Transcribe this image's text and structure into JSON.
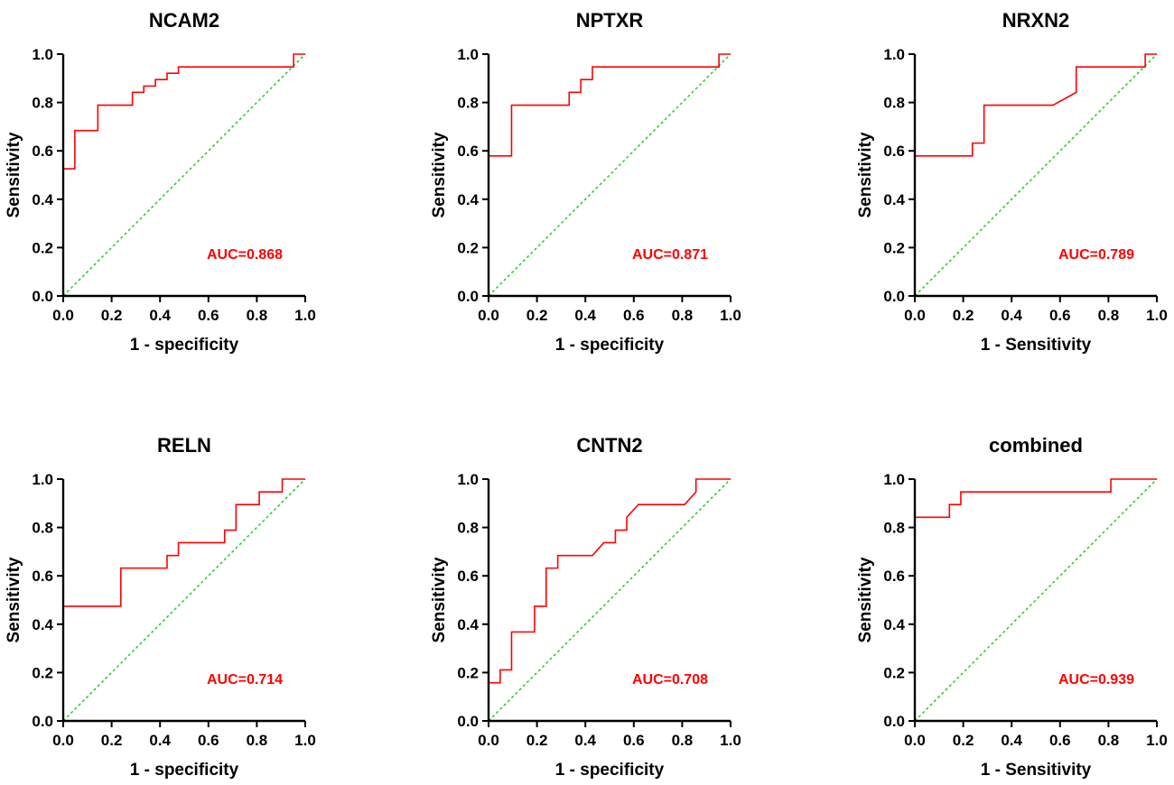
{
  "colors": {
    "roc": "#ff0000",
    "reference": "#22cc22",
    "auc_text": "#ff0000",
    "axis": "#000000"
  },
  "chart_data": [
    {
      "type": "line",
      "title": "NCAM2",
      "xlabel": "1 - specificity",
      "ylabel": "Sensitivity",
      "xlim": [
        0,
        1
      ],
      "ylim": [
        0,
        1
      ],
      "xticks": [
        "0.0",
        "0.2",
        "0.4",
        "0.6",
        "0.8",
        "1.0"
      ],
      "yticks": [
        "0.0",
        "0.2",
        "0.4",
        "0.6",
        "0.8",
        "1.0"
      ],
      "annotation": "AUC=0.868",
      "series": [
        {
          "name": "ROC",
          "x": [
            0,
            0,
            0.048,
            0.048,
            0.143,
            0.143,
            0.286,
            0.286,
            0.333,
            0.333,
            0.381,
            0.381,
            0.429,
            0.429,
            0.476,
            0.476,
            0.952,
            0.952,
            1
          ],
          "y": [
            0,
            0.526,
            0.526,
            0.684,
            0.684,
            0.789,
            0.789,
            0.842,
            0.842,
            0.868,
            0.868,
            0.895,
            0.895,
            0.921,
            0.921,
            0.947,
            0.947,
            1,
            1
          ]
        },
        {
          "name": "Reference",
          "x": [
            0,
            1
          ],
          "y": [
            0,
            1
          ]
        }
      ]
    },
    {
      "type": "line",
      "title": "NPTXR",
      "xlabel": "1 - specificity",
      "ylabel": "Sensitivity",
      "xlim": [
        0,
        1
      ],
      "ylim": [
        0,
        1
      ],
      "xticks": [
        "0.0",
        "0.2",
        "0.4",
        "0.6",
        "0.8",
        "1.0"
      ],
      "yticks": [
        "0.0",
        "0.2",
        "0.4",
        "0.6",
        "0.8",
        "1.0"
      ],
      "annotation": "AUC=0.871",
      "series": [
        {
          "name": "ROC",
          "x": [
            0,
            0,
            0.095,
            0.095,
            0.333,
            0.333,
            0.381,
            0.381,
            0.429,
            0.429,
            0.952,
            0.952,
            1
          ],
          "y": [
            0,
            0.579,
            0.579,
            0.789,
            0.789,
            0.842,
            0.842,
            0.895,
            0.895,
            0.947,
            0.947,
            1,
            1
          ]
        },
        {
          "name": "Reference",
          "x": [
            0,
            1
          ],
          "y": [
            0,
            1
          ]
        }
      ]
    },
    {
      "type": "line",
      "title": "NRXN2",
      "xlabel": "1 - Sensitivity",
      "ylabel": "Sensitivity",
      "xlim": [
        0,
        1
      ],
      "ylim": [
        0,
        1
      ],
      "xticks": [
        "0.0",
        "0.2",
        "0.4",
        "0.6",
        "0.8",
        "1.0"
      ],
      "yticks": [
        "0.0",
        "0.2",
        "0.4",
        "0.6",
        "0.8",
        "1.0"
      ],
      "annotation": "AUC=0.789",
      "series": [
        {
          "name": "ROC",
          "x": [
            0,
            0,
            0.238,
            0.238,
            0.286,
            0.286,
            0.571,
            0.667,
            0.667,
            0.952,
            0.952,
            1
          ],
          "y": [
            0,
            0.579,
            0.579,
            0.632,
            0.632,
            0.789,
            0.789,
            0.842,
            0.947,
            0.947,
            1,
            1
          ]
        },
        {
          "name": "Reference",
          "x": [
            0,
            1
          ],
          "y": [
            0,
            1
          ]
        }
      ]
    },
    {
      "type": "line",
      "title": "RELN",
      "xlabel": "1 - specificity",
      "ylabel": "Sensitivity",
      "xlim": [
        0,
        1
      ],
      "ylim": [
        0,
        1
      ],
      "xticks": [
        "0.0",
        "0.2",
        "0.4",
        "0.6",
        "0.8",
        "1.0"
      ],
      "yticks": [
        "0.0",
        "0.2",
        "0.4",
        "0.6",
        "0.8",
        "1.0"
      ],
      "annotation": "AUC=0.714",
      "series": [
        {
          "name": "ROC",
          "x": [
            0,
            0,
            0.238,
            0.238,
            0.429,
            0.429,
            0.476,
            0.476,
            0.667,
            0.667,
            0.714,
            0.714,
            0.81,
            0.81,
            0.905,
            0.905,
            1
          ],
          "y": [
            0,
            0.474,
            0.474,
            0.632,
            0.632,
            0.684,
            0.684,
            0.737,
            0.737,
            0.789,
            0.789,
            0.895,
            0.895,
            0.947,
            0.947,
            1,
            1
          ]
        },
        {
          "name": "Reference",
          "x": [
            0,
            1
          ],
          "y": [
            0,
            1
          ]
        }
      ]
    },
    {
      "type": "line",
      "title": "CNTN2",
      "xlabel": "1 - specificity",
      "ylabel": "Sensitivity",
      "xlim": [
        0,
        1
      ],
      "ylim": [
        0,
        1
      ],
      "xticks": [
        "0.0",
        "0.2",
        "0.4",
        "0.6",
        "0.8",
        "1.0"
      ],
      "yticks": [
        "0.0",
        "0.2",
        "0.4",
        "0.6",
        "0.8",
        "1.0"
      ],
      "annotation": "AUC=0.708",
      "series": [
        {
          "name": "ROC",
          "x": [
            0,
            0,
            0.048,
            0.048,
            0.095,
            0.095,
            0.19,
            0.19,
            0.238,
            0.238,
            0.286,
            0.286,
            0.429,
            0.476,
            0.524,
            0.524,
            0.571,
            0.571,
            0.619,
            0.81,
            0.857,
            0.857,
            1
          ],
          "y": [
            0,
            0.158,
            0.158,
            0.211,
            0.211,
            0.368,
            0.368,
            0.474,
            0.474,
            0.632,
            0.632,
            0.684,
            0.684,
            0.737,
            0.737,
            0.789,
            0.789,
            0.842,
            0.895,
            0.895,
            0.947,
            1,
            1
          ]
        },
        {
          "name": "Reference",
          "x": [
            0,
            1
          ],
          "y": [
            0,
            1
          ]
        }
      ]
    },
    {
      "type": "line",
      "title": "combined",
      "xlabel": "1 - Sensitivity",
      "ylabel": "Sensitivity",
      "xlim": [
        0,
        1
      ],
      "ylim": [
        0,
        1
      ],
      "xticks": [
        "0.0",
        "0.2",
        "0.4",
        "0.6",
        "0.8",
        "1.0"
      ],
      "yticks": [
        "0.0",
        "0.2",
        "0.4",
        "0.6",
        "0.8",
        "1.0"
      ],
      "annotation": "AUC=0.939",
      "series": [
        {
          "name": "ROC",
          "x": [
            0,
            0,
            0.143,
            0.143,
            0.19,
            0.19,
            0.81,
            0.81,
            1
          ],
          "y": [
            0,
            0.842,
            0.842,
            0.895,
            0.895,
            0.947,
            0.947,
            1,
            1
          ]
        },
        {
          "name": "Reference",
          "x": [
            0,
            1
          ],
          "y": [
            0,
            1
          ]
        }
      ]
    }
  ]
}
